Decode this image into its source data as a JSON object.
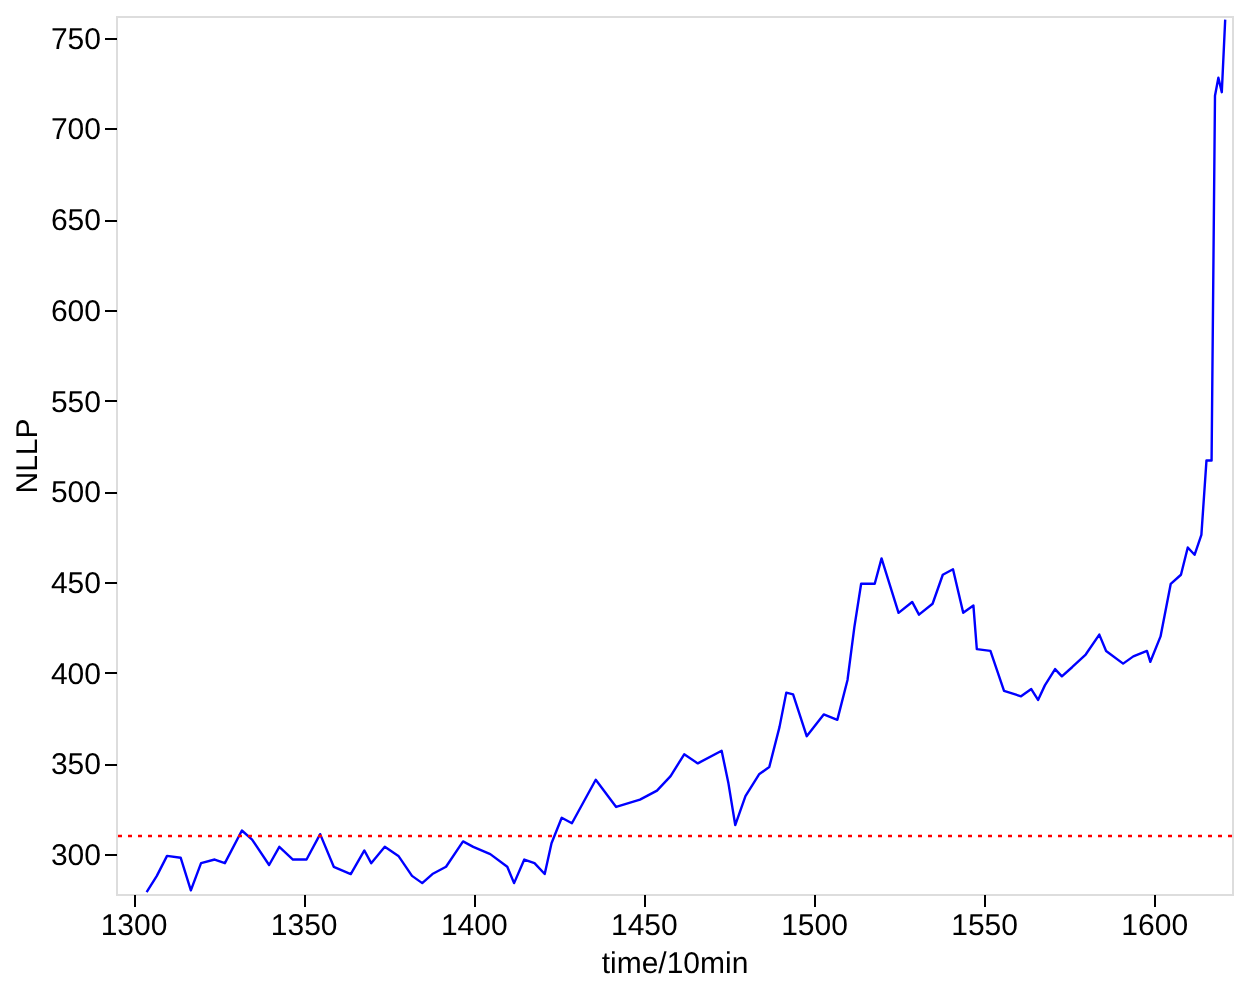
{
  "chart_data": {
    "type": "line",
    "xlabel": "time/10min",
    "ylabel": "NLLP",
    "xlim": [
      1295,
      1623
    ],
    "ylim": [
      278,
      762
    ],
    "xticks": [
      1300,
      1350,
      1400,
      1450,
      1500,
      1550,
      1600
    ],
    "yticks": [
      300,
      350,
      400,
      450,
      500,
      550,
      600,
      650,
      700,
      750
    ],
    "grid": false,
    "marker": "none",
    "line_style": "solid",
    "series": [
      {
        "color": "#0000ff",
        "x": [
          1304,
          1307,
          1310,
          1314,
          1317,
          1320,
          1324,
          1327,
          1332,
          1335,
          1340,
          1343,
          1347,
          1351,
          1355,
          1359,
          1364,
          1368,
          1370,
          1374,
          1378,
          1382,
          1385,
          1388,
          1392,
          1397,
          1400,
          1405,
          1410,
          1412,
          1415,
          1418,
          1421,
          1423,
          1426,
          1429,
          1436,
          1442,
          1449,
          1454,
          1458,
          1462,
          1466,
          1473,
          1475,
          1477,
          1480,
          1484,
          1487,
          1490,
          1492,
          1494,
          1498,
          1503,
          1507,
          1510,
          1512,
          1514,
          1518,
          1520,
          1523,
          1525,
          1529,
          1531,
          1535,
          1538,
          1541,
          1544,
          1547,
          1548,
          1552,
          1554,
          1556,
          1561,
          1564,
          1566,
          1568,
          1571,
          1573,
          1576,
          1580,
          1584,
          1586,
          1591,
          1594,
          1598,
          1599,
          1602,
          1605,
          1608,
          1610,
          1612,
          1614,
          1615.5,
          1617,
          1618,
          1619,
          1620,
          1621
        ],
        "values": [
          279,
          288,
          299,
          298,
          280,
          295,
          297,
          295,
          313,
          308,
          294,
          304,
          297,
          297,
          311,
          293,
          289,
          302,
          295,
          304,
          299,
          288,
          284,
          289,
          293,
          307,
          304,
          300,
          293,
          284,
          297,
          295,
          289,
          306,
          320,
          317,
          341,
          326,
          330,
          335,
          343,
          355,
          350,
          357,
          339,
          316,
          332,
          344,
          348,
          370,
          389,
          388,
          365,
          377,
          374,
          396,
          425,
          449,
          449,
          463,
          445,
          433,
          439,
          432,
          438,
          454,
          457,
          433,
          437,
          413,
          412,
          401,
          390,
          387,
          391,
          385,
          393,
          402,
          398,
          403,
          410,
          421,
          412,
          405,
          409,
          412,
          406,
          420,
          449,
          454,
          469,
          465,
          476,
          517,
          517,
          718,
          728,
          720,
          760
        ]
      }
    ],
    "ref_lines": [
      {
        "axis": "y",
        "value": 310,
        "color": "#ff0000",
        "line_style": "dotted"
      }
    ]
  }
}
